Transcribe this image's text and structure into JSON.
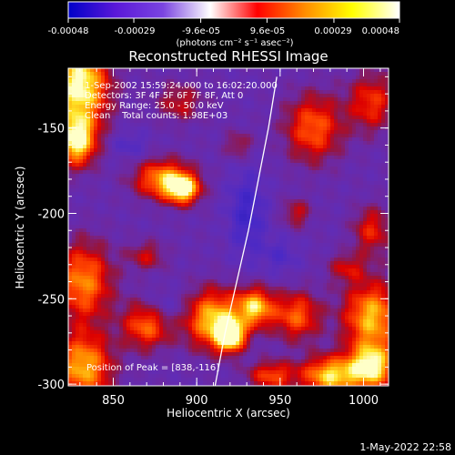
{
  "colorbar": {
    "tick_labels": [
      "-0.00048",
      "-0.00029",
      "-9.6e-05",
      "9.6e-05",
      "0.00029",
      "0.00048"
    ],
    "tick_values": [
      -0.00048,
      -0.00029,
      -9.6e-05,
      9.6e-05,
      0.00029,
      0.00048
    ],
    "range": [
      -0.00048,
      0.00048
    ],
    "units_label": "(photons cm⁻² s⁻¹ asec⁻²)",
    "colors": [
      "#0000c8",
      "#5a18d8",
      "#7a44e0",
      "#ffffff",
      "#ff0000",
      "#ff8c00",
      "#ffff00",
      "#ffffff"
    ]
  },
  "annotations": {
    "time_range": "1-Sep-2002 15:59:24.000 to 16:02:20.000",
    "detectors": "Detectors: 3F 4F 5F 6F 7F 8F, Att 0",
    "energy_range": "Energy Range: 25.0 - 50.0 keV",
    "algorithm": "Clean    Total counts: 1.98E+03",
    "peak_position": "Position of Peak = [838,-116]"
  },
  "footer": {
    "timestamp": "1-May-2022 22:58"
  },
  "chart_data": {
    "type": "heatmap",
    "title": "Reconstructed RHESSI Image",
    "xlabel": "Heliocentric X (arcsec)",
    "ylabel": "Heliocentric Y (arcsec)",
    "xlim": [
      823,
      1015
    ],
    "ylim": [
      -301,
      -115
    ],
    "x_ticks": [
      850,
      900,
      950,
      1000
    ],
    "x_tick_labels": [
      "850",
      "900",
      "950",
      "1000"
    ],
    "y_ticks": [
      -150,
      -200,
      -250,
      -300
    ],
    "y_tick_labels": [
      "-150",
      "-200",
      "-250",
      "-300"
    ],
    "limb_curve": [
      {
        "x": 911,
        "y": -301
      },
      {
        "x": 917,
        "y": -270
      },
      {
        "x": 924,
        "y": -240
      },
      {
        "x": 931,
        "y": -210
      },
      {
        "x": 937,
        "y": -180
      },
      {
        "x": 943,
        "y": -150
      },
      {
        "x": 948,
        "y": -120
      }
    ],
    "intensity_blobs": [
      {
        "x": 830,
        "y": -125,
        "sx": 12,
        "sy": 18,
        "v": 1.0
      },
      {
        "x": 828,
        "y": -158,
        "sx": 8,
        "sy": 10,
        "v": 0.9
      },
      {
        "x": 880,
        "y": -180,
        "sx": 12,
        "sy": 8,
        "v": 0.75
      },
      {
        "x": 892,
        "y": -186,
        "sx": 7,
        "sy": 6,
        "v": 0.85
      },
      {
        "x": 970,
        "y": -150,
        "sx": 12,
        "sy": 14,
        "v": 0.6
      },
      {
        "x": 1005,
        "y": -135,
        "sx": 10,
        "sy": 12,
        "v": 0.5
      },
      {
        "x": 1005,
        "y": -210,
        "sx": 8,
        "sy": 10,
        "v": 0.45
      },
      {
        "x": 890,
        "y": -135,
        "sx": 10,
        "sy": 8,
        "v": 0.35
      },
      {
        "x": 832,
        "y": -240,
        "sx": 12,
        "sy": 16,
        "v": 0.7
      },
      {
        "x": 832,
        "y": -290,
        "sx": 12,
        "sy": 14,
        "v": 0.8
      },
      {
        "x": 870,
        "y": -265,
        "sx": 10,
        "sy": 10,
        "v": 0.65
      },
      {
        "x": 910,
        "y": -262,
        "sx": 12,
        "sy": 12,
        "v": 0.85
      },
      {
        "x": 920,
        "y": -272,
        "sx": 6,
        "sy": 6,
        "v": 1.0
      },
      {
        "x": 935,
        "y": -255,
        "sx": 8,
        "sy": 8,
        "v": 0.8
      },
      {
        "x": 960,
        "y": -260,
        "sx": 10,
        "sy": 10,
        "v": 0.6
      },
      {
        "x": 960,
        "y": -200,
        "sx": 6,
        "sy": 6,
        "v": 0.35
      },
      {
        "x": 1005,
        "y": -260,
        "sx": 12,
        "sy": 14,
        "v": 0.8
      },
      {
        "x": 1005,
        "y": -290,
        "sx": 10,
        "sy": 10,
        "v": 0.9
      },
      {
        "x": 980,
        "y": -295,
        "sx": 12,
        "sy": 8,
        "v": 0.85
      },
      {
        "x": 945,
        "y": -295,
        "sx": 10,
        "sy": 6,
        "v": 0.55
      },
      {
        "x": 870,
        "y": -225,
        "sx": 8,
        "sy": 6,
        "v": 0.35
      },
      {
        "x": 925,
        "y": -160,
        "sx": 6,
        "sy": 6,
        "v": 0.3
      },
      {
        "x": 990,
        "y": -232,
        "sx": 8,
        "sy": 6,
        "v": 0.35
      }
    ],
    "negative_blobs": [
      {
        "x": 930,
        "y": -200,
        "sx": 8,
        "sy": 18,
        "v": 1.0
      },
      {
        "x": 880,
        "y": -255,
        "sx": 10,
        "sy": 7,
        "v": 0.7
      },
      {
        "x": 860,
        "y": -160,
        "sx": 8,
        "sy": 6,
        "v": 0.6
      },
      {
        "x": 950,
        "y": -225,
        "sx": 8,
        "sy": 8,
        "v": 0.6
      }
    ]
  }
}
